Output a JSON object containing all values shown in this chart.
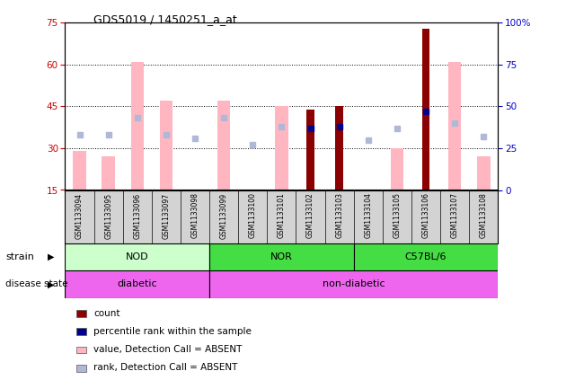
{
  "title": "GDS5019 / 1450251_a_at",
  "samples": [
    "GSM1133094",
    "GSM1133095",
    "GSM1133096",
    "GSM1133097",
    "GSM1133098",
    "GSM1133099",
    "GSM1133100",
    "GSM1133101",
    "GSM1133102",
    "GSM1133103",
    "GSM1133104",
    "GSM1133105",
    "GSM1133106",
    "GSM1133107",
    "GSM1133108"
  ],
  "value_absent": [
    29,
    27,
    61,
    47,
    null,
    47,
    15,
    45,
    null,
    null,
    null,
    30,
    null,
    61,
    27
  ],
  "rank_absent": [
    33,
    33,
    43,
    33,
    31,
    43,
    27,
    38,
    null,
    null,
    30,
    37,
    null,
    40,
    32
  ],
  "count": [
    null,
    null,
    null,
    null,
    null,
    null,
    null,
    null,
    44,
    45,
    null,
    null,
    73,
    null,
    null
  ],
  "percentile": [
    null,
    null,
    null,
    null,
    null,
    null,
    null,
    null,
    37,
    38,
    null,
    null,
    47,
    null,
    null
  ],
  "ylim_left": [
    15,
    75
  ],
  "ylim_right": [
    0,
    100
  ],
  "yticks_left": [
    15,
    30,
    45,
    60,
    75
  ],
  "yticks_right": [
    0,
    25,
    50,
    75,
    100
  ],
  "color_count": "#8B0000",
  "color_percentile": "#00008B",
  "color_value_absent": "#ffb6c1",
  "color_rank_absent": "#b0b8d8",
  "left_axis_color": "#cc0000",
  "right_axis_color": "#0000cc",
  "strain_data": [
    {
      "label": "NOD",
      "start": 0,
      "end": 5,
      "color": "#ccffcc"
    },
    {
      "label": "NOR",
      "start": 5,
      "end": 10,
      "color": "#44dd44"
    },
    {
      "label": "C57BL/6",
      "start": 10,
      "end": 15,
      "color": "#44dd44"
    }
  ],
  "disease_data": [
    {
      "label": "diabetic",
      "start": 0,
      "end": 5,
      "color": "#ee66ee"
    },
    {
      "label": "non-diabetic",
      "start": 5,
      "end": 15,
      "color": "#ee66ee"
    }
  ],
  "legend_items": [
    {
      "label": "count",
      "color": "#8B0000"
    },
    {
      "label": "percentile rank within the sample",
      "color": "#00008B"
    },
    {
      "label": "value, Detection Call = ABSENT",
      "color": "#ffb6c1"
    },
    {
      "label": "rank, Detection Call = ABSENT",
      "color": "#b0b8d8"
    }
  ]
}
